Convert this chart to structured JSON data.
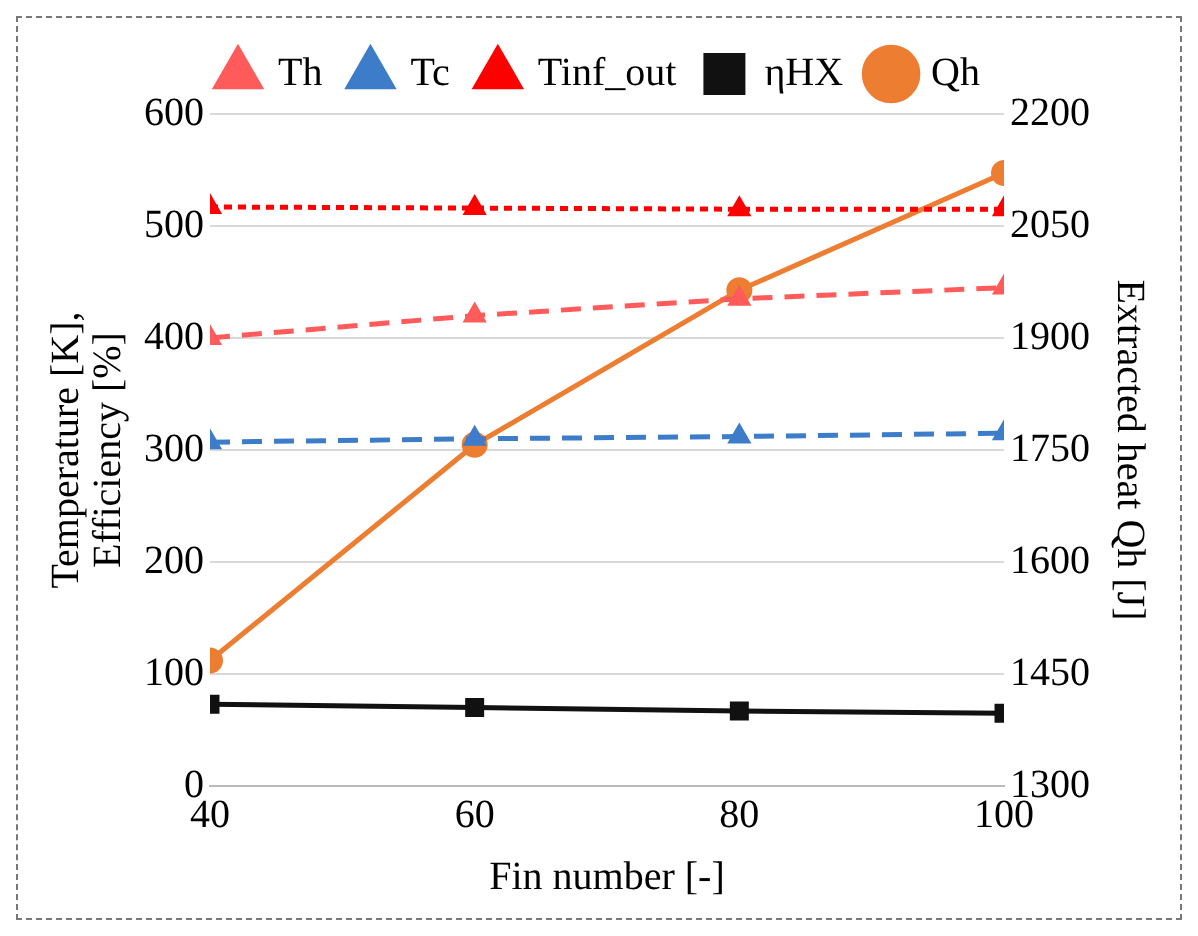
{
  "chart_data": {
    "type": "line",
    "xlabel": "Fin number [-]",
    "ylabel": "Temperature [K], Efficiency [%]",
    "y2label": "Extracted heat Qh [J]",
    "x": [
      40,
      60,
      80,
      100
    ],
    "xlim": [
      40,
      100
    ],
    "xticks": [
      40,
      60,
      80,
      100
    ],
    "ylim": [
      0,
      600
    ],
    "yticks": [
      0,
      100,
      200,
      300,
      400,
      500,
      600
    ],
    "y2lim": [
      1300,
      2200
    ],
    "y2ticks": [
      1300,
      1450,
      1600,
      1750,
      1900,
      2050,
      2200
    ],
    "grid": "y",
    "legend": "top",
    "series": [
      {
        "name": "Th",
        "color": "#ff5b5b",
        "values": [
          400,
          420,
          435,
          445
        ],
        "marker": "triangle",
        "line_style": "dashed"
      },
      {
        "name": "Tc",
        "color": "#3d7cc9",
        "values": [
          307,
          310,
          312,
          315
        ],
        "marker": "triangle",
        "line_style": "dashed"
      },
      {
        "name": "Tinf_out",
        "color": "#ff0000",
        "values": [
          517,
          516,
          515,
          515
        ],
        "marker": "triangle",
        "line_style": "dotted"
      },
      {
        "name": "ηHX",
        "color": "#111111",
        "values": [
          73,
          70,
          67,
          65
        ],
        "marker": "square",
        "line_style": "solid"
      },
      {
        "name": "Qh",
        "color": "#ed7d31",
        "values": [
          1468,
          1757,
          1964,
          2121
        ],
        "marker": "circle",
        "line_style": "solid",
        "axis": "y2"
      }
    ]
  }
}
